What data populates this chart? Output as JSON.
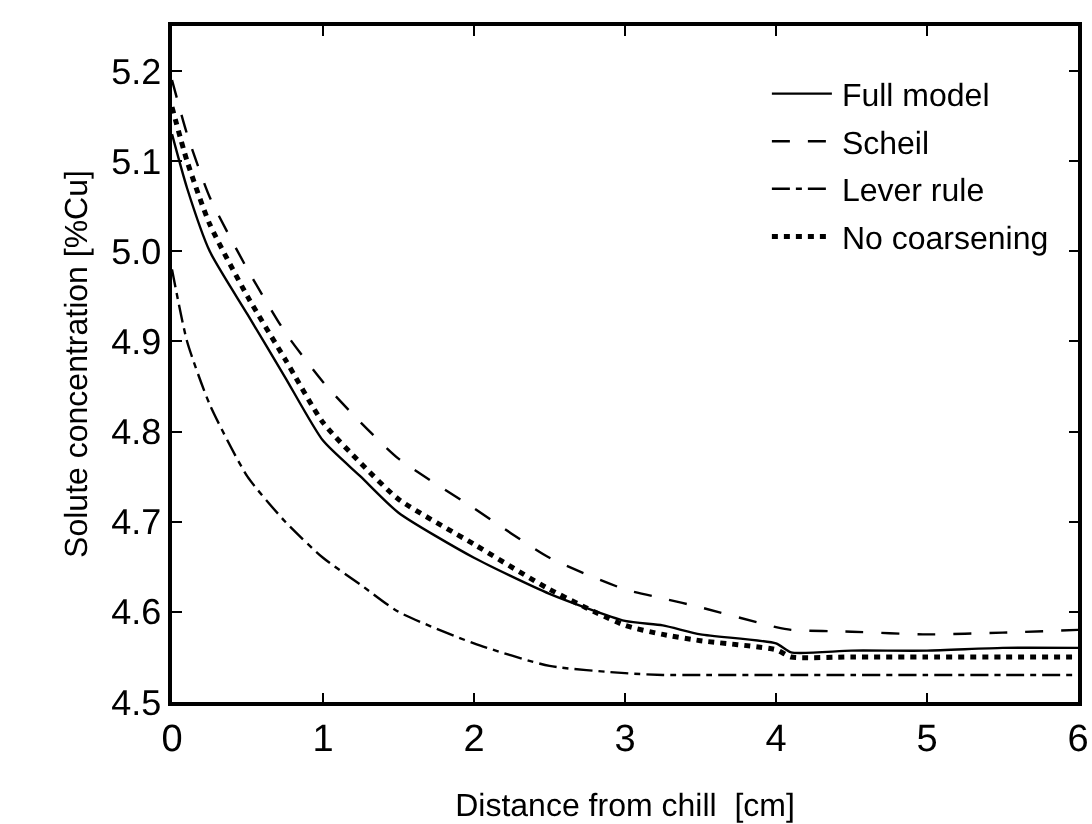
{
  "chart_data": {
    "type": "line",
    "xlabel": "Distance from chill  [cm]",
    "ylabel": "Solute concentration [%Cu]",
    "xlim": [
      0,
      6
    ],
    "ylim": [
      4.5,
      5.25
    ],
    "xticks": [
      0,
      1,
      2,
      3,
      4,
      5,
      6
    ],
    "yticks": [
      4.5,
      4.6,
      4.7,
      4.8,
      4.9,
      {
        "value": 5,
        "label": "5.0"
      },
      5.1,
      5.2
    ],
    "grid": false,
    "legend": "top right",
    "marker": "none",
    "x": [
      0,
      0.1,
      0.25,
      0.5,
      0.75,
      1,
      1.25,
      1.5,
      2,
      2.5,
      3,
      3.25,
      3.5,
      4,
      4.1,
      4.5,
      5,
      5.5,
      6
    ],
    "series": [
      {
        "name": "Full model",
        "color": "#000000",
        "line_style": "solid",
        "values": [
          5.13,
          5.07,
          5.0,
          4.93,
          4.86,
          4.79,
          4.75,
          4.71,
          4.66,
          4.62,
          4.59,
          4.585,
          4.575,
          4.565,
          4.555,
          4.557,
          4.557,
          4.56,
          4.56
        ]
      },
      {
        "name": "Scheil",
        "color": "#000000",
        "line_style": "dashed",
        "values": [
          5.19,
          5.13,
          5.06,
          4.98,
          4.91,
          4.855,
          4.81,
          4.77,
          4.715,
          4.66,
          4.625,
          4.615,
          4.605,
          4.583,
          4.58,
          4.578,
          4.575,
          4.577,
          4.58
        ]
      },
      {
        "name": "Lever rule",
        "color": "#000000",
        "line_style": "dashdot",
        "values": [
          4.98,
          4.9,
          4.83,
          4.75,
          4.7,
          4.66,
          4.63,
          4.6,
          4.565,
          4.54,
          4.532,
          4.53,
          4.53,
          4.53,
          4.53,
          4.53,
          4.53,
          4.53,
          4.53
        ]
      },
      {
        "name": "No coarsening",
        "color": "#000000",
        "line_style": "dotted",
        "values": [
          5.16,
          5.1,
          5.03,
          4.95,
          4.88,
          4.81,
          4.765,
          4.725,
          4.675,
          4.625,
          4.585,
          4.575,
          4.568,
          4.558,
          4.55,
          4.55,
          4.55,
          4.55,
          4.55
        ]
      }
    ]
  }
}
